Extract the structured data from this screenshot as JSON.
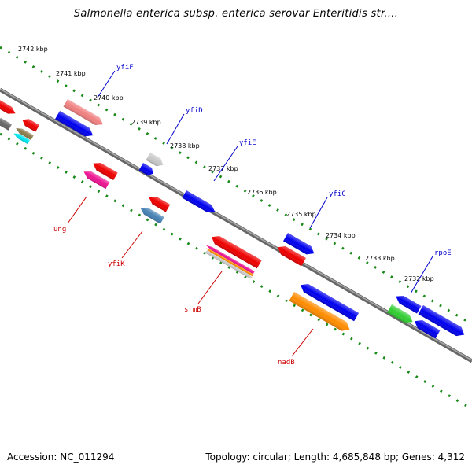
{
  "title": "Salmonella enterica subsp. enterica serovar Enteritidis str....",
  "footer": {
    "accession": "Accession: NC_011294",
    "summary": "Topology: circular; Length: 4,685,848 bp; Genes: 4,312"
  },
  "colors": {
    "backbone": "#808080",
    "tick": "#1a8a1a",
    "forward_label": "#0000cc",
    "reverse_label": "#cc0000"
  },
  "ticks": [
    "2742 kbp",
    "2741 kbp",
    "2740 kbp",
    "2739 kbp",
    "2738 kbp",
    "2737 kbp",
    "2736 kbp",
    "2735 kbp",
    "2734 kbp",
    "2733 kbp",
    "2732 kbp"
  ],
  "forward_labels": [
    "yfiF",
    "yfiD",
    "yfiE",
    "yfiC",
    "rpoE"
  ],
  "reverse_labels": [
    "ung",
    "yfiK",
    "srmB",
    "nadB"
  ],
  "blocks": [
    {
      "id": "b1",
      "color": "#ee0000"
    },
    {
      "id": "b2",
      "color": "#666666"
    },
    {
      "id": "b3",
      "color": "#ee0000"
    },
    {
      "id": "b4",
      "color": "#8c7c4c"
    },
    {
      "id": "b5",
      "color": "#00e5ee"
    },
    {
      "id": "b6",
      "color": "#f08080"
    },
    {
      "id": "b7",
      "color": "#0000ee"
    },
    {
      "id": "b8",
      "color": "#ee0000"
    },
    {
      "id": "b9",
      "color": "#ee1493"
    },
    {
      "id": "b10",
      "color": "#c8c8c8"
    },
    {
      "id": "b11",
      "color": "#0000ee"
    },
    {
      "id": "b12",
      "color": "#ee0000"
    },
    {
      "id": "b13",
      "color": "#4682b4"
    },
    {
      "id": "b14",
      "color": "#0000ee"
    },
    {
      "id": "b15",
      "color": "#ee0000"
    },
    {
      "id": "b16",
      "color": "#ee1493"
    },
    {
      "id": "b17",
      "color": "#ff8c00"
    },
    {
      "id": "b18",
      "color": "#c8c8c8"
    },
    {
      "id": "b19",
      "color": "#0000ee"
    },
    {
      "id": "b20",
      "color": "#ee0000"
    },
    {
      "id": "b21",
      "color": "#0000ee"
    },
    {
      "id": "b22",
      "color": "#ff8c00"
    },
    {
      "id": "b23",
      "color": "#0000ee"
    },
    {
      "id": "b24",
      "color": "#32cd32"
    },
    {
      "id": "b25",
      "color": "#0000ee"
    },
    {
      "id": "b26",
      "color": "#0000ee"
    }
  ]
}
